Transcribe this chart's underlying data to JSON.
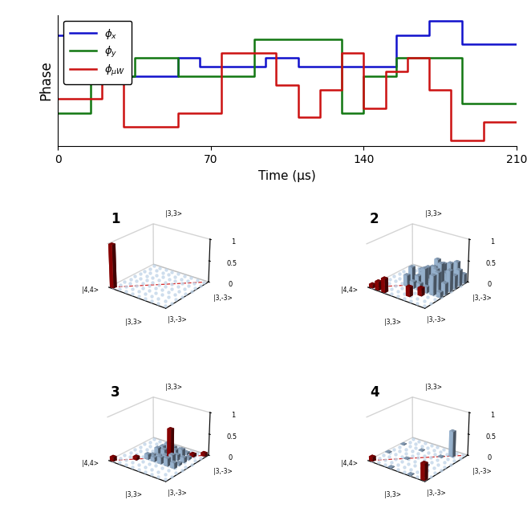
{
  "top_ylabel": "Phase",
  "top_xlabel": "Time (μs)",
  "xticks": [
    0,
    70,
    140,
    210
  ],
  "xlim": [
    0,
    210
  ],
  "blue_color": "#1111cc",
  "green_color": "#117711",
  "red_color": "#cc1111",
  "blue_x": [
    0,
    15,
    15,
    30,
    30,
    55,
    55,
    65,
    65,
    80,
    80,
    95,
    95,
    110,
    110,
    125,
    125,
    140,
    140,
    155,
    155,
    170,
    170,
    185,
    185,
    210
  ],
  "blue_y": [
    3.2,
    3.2,
    2.3,
    2.3,
    2.3,
    2.3,
    2.7,
    2.7,
    2.5,
    2.5,
    2.5,
    2.5,
    2.7,
    2.7,
    2.5,
    2.5,
    2.5,
    2.5,
    2.5,
    2.5,
    3.2,
    3.2,
    3.5,
    3.5,
    3.0,
    3.0
  ],
  "green_x": [
    0,
    15,
    15,
    35,
    35,
    55,
    55,
    70,
    70,
    90,
    90,
    110,
    110,
    130,
    130,
    140,
    140,
    155,
    155,
    170,
    170,
    185,
    185,
    210
  ],
  "green_y": [
    1.5,
    1.5,
    2.3,
    2.3,
    2.7,
    2.7,
    2.3,
    2.3,
    2.3,
    2.3,
    3.1,
    3.1,
    3.1,
    3.1,
    1.5,
    1.5,
    2.3,
    2.3,
    2.7,
    2.7,
    2.7,
    2.7,
    1.7,
    1.7
  ],
  "red_x": [
    0,
    10,
    10,
    20,
    20,
    30,
    30,
    40,
    40,
    55,
    55,
    65,
    65,
    75,
    75,
    90,
    90,
    100,
    100,
    110,
    110,
    120,
    120,
    130,
    130,
    140,
    140,
    150,
    150,
    160,
    160,
    170,
    170,
    180,
    180,
    195,
    195,
    210
  ],
  "red_y": [
    1.8,
    1.8,
    1.8,
    1.8,
    2.3,
    2.3,
    1.2,
    1.2,
    1.2,
    1.2,
    1.5,
    1.5,
    1.5,
    1.5,
    2.8,
    2.8,
    2.8,
    2.8,
    2.1,
    2.1,
    1.4,
    1.4,
    2.0,
    2.0,
    2.8,
    2.8,
    1.6,
    1.6,
    2.4,
    2.4,
    2.7,
    2.7,
    2.0,
    2.0,
    0.9,
    0.9,
    1.3,
    1.3
  ],
  "bar_blue": "#aac8e8",
  "bar_red": "#990000",
  "bar_hex": "#c0d4e8",
  "n_states": 9,
  "panel_labels": [
    "1",
    "2",
    "3",
    "4"
  ],
  "state_labels": [
    "|4,4>",
    "|3,3>",
    "|3,-3>"
  ]
}
